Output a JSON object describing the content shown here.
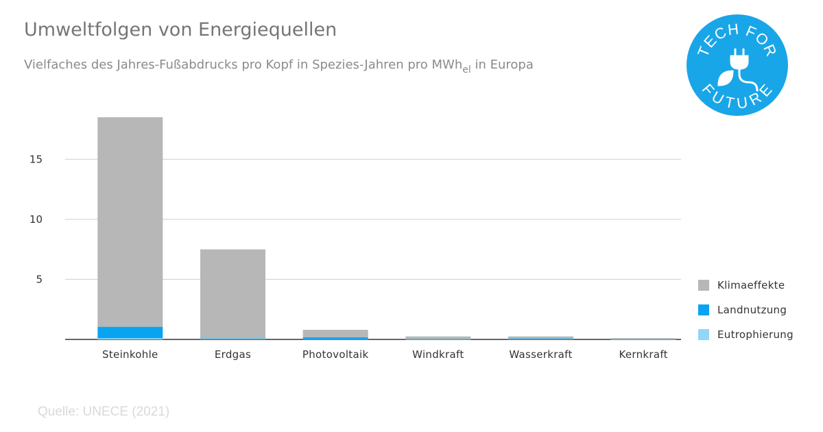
{
  "title": "Umweltfolgen von Energiequellen",
  "subtitle": {
    "main": "Vielfaches des Jahres-Fußabdrucks pro Kopf in Spezies-Jahren pro MWh",
    "sub": "el",
    "suffix": " in Europa"
  },
  "source": "Quelle: UNECE (2021)",
  "logo": {
    "top_text": "TECH FOR",
    "bottom_text": "FUTURE",
    "color": "#19a6e8",
    "icon": "plug-leaf-icon"
  },
  "chart_data": {
    "type": "bar",
    "stacked": true,
    "categories": [
      "Steinkohle",
      "Erdgas",
      "Photovoltaik",
      "Windkraft",
      "Wasserkraft",
      "Kernkraft"
    ],
    "series": [
      {
        "name": "Eutrophierung",
        "color": "#8fd7f5",
        "values": [
          0.1,
          0.03,
          0.02,
          0.01,
          0.02,
          0.005
        ]
      },
      {
        "name": "Landnutzung",
        "color": "#0aa3f0",
        "values": [
          0.95,
          0.05,
          0.15,
          0.02,
          0.06,
          0.01
        ]
      },
      {
        "name": "Klimaeffekte",
        "color": "#b7b7b7",
        "values": [
          17.45,
          7.42,
          0.63,
          0.22,
          0.17,
          0.09
        ]
      }
    ],
    "legend_order": [
      "Klimaeffekte",
      "Landnutzung",
      "Eutrophierung"
    ],
    "yticks": [
      5,
      10,
      15
    ],
    "ylim": [
      0,
      18.5
    ],
    "grid": true,
    "legend_position": "right",
    "xlabel": "",
    "ylabel": ""
  }
}
